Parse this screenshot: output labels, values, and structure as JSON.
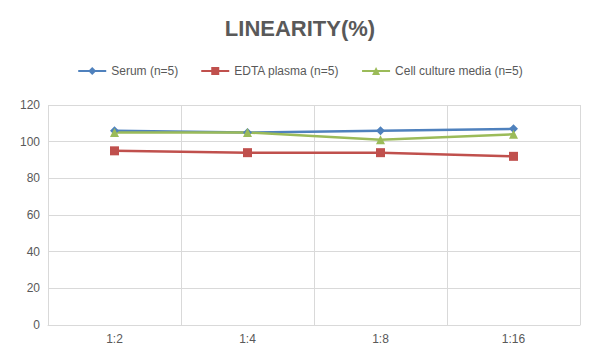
{
  "chart_data": {
    "type": "line",
    "title": "LINEARITY(%)",
    "categories": [
      "1:2",
      "1:4",
      "1:8",
      "1:16"
    ],
    "series": [
      {
        "name": "Serum (n=5)",
        "color": "#4f81bd",
        "marker": "diamond",
        "values": [
          106,
          105,
          106,
          107
        ]
      },
      {
        "name": "EDTA plasma (n=5)",
        "color": "#c0504d",
        "marker": "square",
        "values": [
          95,
          94,
          94,
          92
        ]
      },
      {
        "name": "Cell culture media (n=5)",
        "color": "#9bbb59",
        "marker": "triangle",
        "values": [
          105,
          105,
          101,
          104
        ]
      }
    ],
    "ylim": [
      0,
      120
    ],
    "yticks": [
      0,
      20,
      40,
      60,
      80,
      100,
      120
    ],
    "grid": true,
    "legend": "top"
  }
}
